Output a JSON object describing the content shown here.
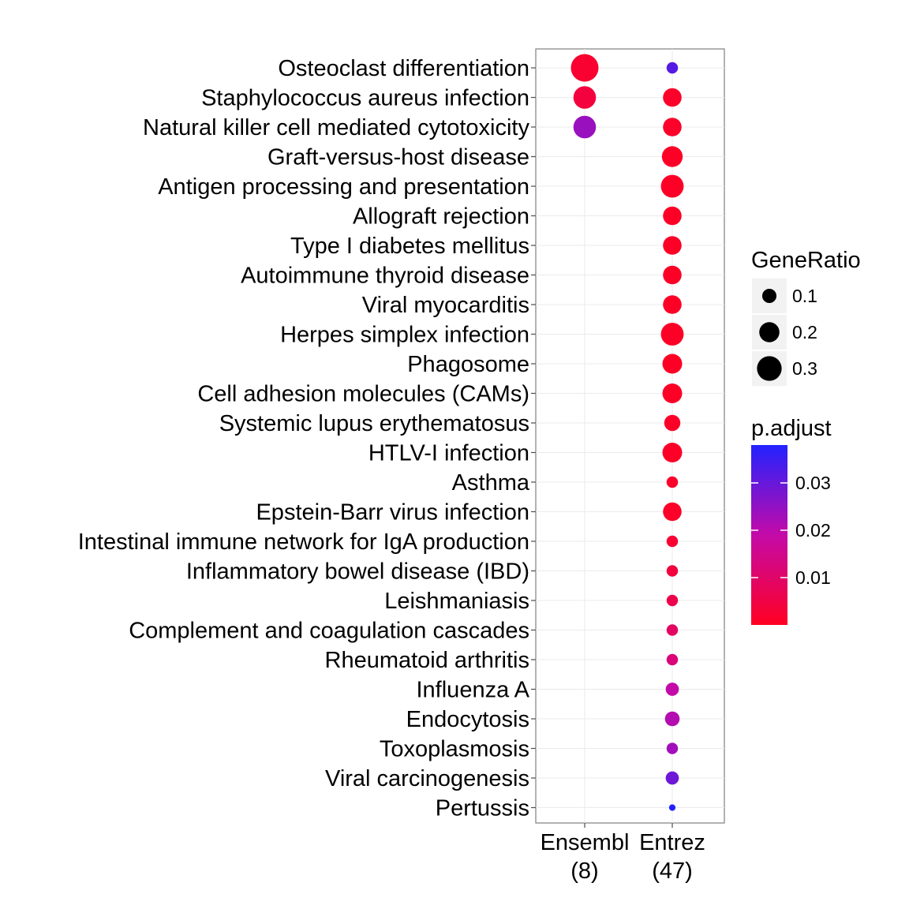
{
  "chart_data": {
    "type": "scatter",
    "x_categories": [
      "Ensembl\n(8)",
      "Entrez\n(47)"
    ],
    "y_categories": [
      "Osteoclast differentiation",
      "Staphylococcus aureus infection",
      "Natural killer cell mediated cytotoxicity",
      "Graft-versus-host disease",
      "Antigen processing and presentation",
      "Allograft rejection",
      "Type I diabetes mellitus",
      "Autoimmune thyroid disease",
      "Viral myocarditis",
      "Herpes simplex infection",
      "Phagosome",
      "Cell adhesion molecules (CAMs)",
      "Systemic lupus erythematosus",
      "HTLV-I infection",
      "Asthma",
      "Epstein-Barr virus infection",
      "Intestinal immune network for IgA production",
      "Inflammatory bowel disease (IBD)",
      "Leishmaniasis",
      "Complement and coagulation cascades",
      "Rheumatoid arthritis",
      "Influenza A",
      "Endocytosis",
      "Toxoplasmosis",
      "Viral carcinogenesis",
      "Pertussis"
    ],
    "points": [
      {
        "x": "Ensembl\n(8)",
        "y": "Osteoclast differentiation",
        "GeneRatio": 0.375,
        "p_adjust": 0.002
      },
      {
        "x": "Ensembl\n(8)",
        "y": "Staphylococcus aureus infection",
        "GeneRatio": 0.25,
        "p_adjust": 0.004
      },
      {
        "x": "Ensembl\n(8)",
        "y": "Natural killer cell mediated cytotoxicity",
        "GeneRatio": 0.25,
        "p_adjust": 0.024
      },
      {
        "x": "Entrez\n(47)",
        "y": "Osteoclast differentiation",
        "GeneRatio": 0.064,
        "p_adjust": 0.032
      },
      {
        "x": "Entrez\n(47)",
        "y": "Staphylococcus aureus infection",
        "GeneRatio": 0.17,
        "p_adjust": 0.001
      },
      {
        "x": "Entrez\n(47)",
        "y": "Natural killer cell mediated cytotoxicity",
        "GeneRatio": 0.17,
        "p_adjust": 0.001
      },
      {
        "x": "Entrez\n(47)",
        "y": "Graft-versus-host disease",
        "GeneRatio": 0.213,
        "p_adjust": 0.0005
      },
      {
        "x": "Entrez\n(47)",
        "y": "Antigen processing and presentation",
        "GeneRatio": 0.255,
        "p_adjust": 0.0005
      },
      {
        "x": "Entrez\n(47)",
        "y": "Allograft rejection",
        "GeneRatio": 0.17,
        "p_adjust": 0.0005
      },
      {
        "x": "Entrez\n(47)",
        "y": "Type I diabetes mellitus",
        "GeneRatio": 0.17,
        "p_adjust": 0.0005
      },
      {
        "x": "Entrez\n(47)",
        "y": "Autoimmune thyroid disease",
        "GeneRatio": 0.17,
        "p_adjust": 0.0005
      },
      {
        "x": "Entrez\n(47)",
        "y": "Viral myocarditis",
        "GeneRatio": 0.17,
        "p_adjust": 0.0005
      },
      {
        "x": "Entrez\n(47)",
        "y": "Herpes simplex infection",
        "GeneRatio": 0.255,
        "p_adjust": 0.0005
      },
      {
        "x": "Entrez\n(47)",
        "y": "Phagosome",
        "GeneRatio": 0.191,
        "p_adjust": 0.0005
      },
      {
        "x": "Entrez\n(47)",
        "y": "Cell adhesion molecules (CAMs)",
        "GeneRatio": 0.191,
        "p_adjust": 0.0005
      },
      {
        "x": "Entrez\n(47)",
        "y": "Systemic lupus erythematosus",
        "GeneRatio": 0.128,
        "p_adjust": 0.0008
      },
      {
        "x": "Entrez\n(47)",
        "y": "HTLV-I infection",
        "GeneRatio": 0.191,
        "p_adjust": 0.0008
      },
      {
        "x": "Entrez\n(47)",
        "y": "Asthma",
        "GeneRatio": 0.064,
        "p_adjust": 0.001
      },
      {
        "x": "Entrez\n(47)",
        "y": "Epstein-Barr virus infection",
        "GeneRatio": 0.17,
        "p_adjust": 0.001
      },
      {
        "x": "Entrez\n(47)",
        "y": "Intestinal immune network for IgA production",
        "GeneRatio": 0.064,
        "p_adjust": 0.002
      },
      {
        "x": "Entrez\n(47)",
        "y": "Inflammatory bowel disease (IBD)",
        "GeneRatio": 0.064,
        "p_adjust": 0.004
      },
      {
        "x": "Entrez\n(47)",
        "y": "Leishmaniasis",
        "GeneRatio": 0.064,
        "p_adjust": 0.006
      },
      {
        "x": "Entrez\n(47)",
        "y": "Complement and coagulation cascades",
        "GeneRatio": 0.064,
        "p_adjust": 0.009
      },
      {
        "x": "Entrez\n(47)",
        "y": "Rheumatoid arthritis",
        "GeneRatio": 0.064,
        "p_adjust": 0.012
      },
      {
        "x": "Entrez\n(47)",
        "y": "Influenza A",
        "GeneRatio": 0.085,
        "p_adjust": 0.019
      },
      {
        "x": "Entrez\n(47)",
        "y": "Endocytosis",
        "GeneRatio": 0.106,
        "p_adjust": 0.021
      },
      {
        "x": "Entrez\n(47)",
        "y": "Toxoplasmosis",
        "GeneRatio": 0.064,
        "p_adjust": 0.023
      },
      {
        "x": "Entrez\n(47)",
        "y": "Viral carcinogenesis",
        "GeneRatio": 0.085,
        "p_adjust": 0.029
      },
      {
        "x": "Entrez\n(47)",
        "y": "Pertussis",
        "GeneRatio": 0.021,
        "p_adjust": 0.038
      }
    ],
    "size_legend": {
      "title": "GeneRatio",
      "breaks": [
        0.1,
        0.2,
        0.3
      ],
      "labels": [
        "0.1",
        "0.2",
        "0.3"
      ]
    },
    "color_legend": {
      "title": "p.adjust",
      "range": [
        0.0,
        0.038
      ],
      "breaks": [
        0.01,
        0.02,
        0.03
      ],
      "labels": [
        "0.01",
        "0.02",
        "0.03"
      ],
      "low_color": "#ff0022",
      "high_color": "#2222ff"
    },
    "grid": true,
    "legend_position": "right",
    "xlabel": "",
    "ylabel": "",
    "title": ""
  }
}
